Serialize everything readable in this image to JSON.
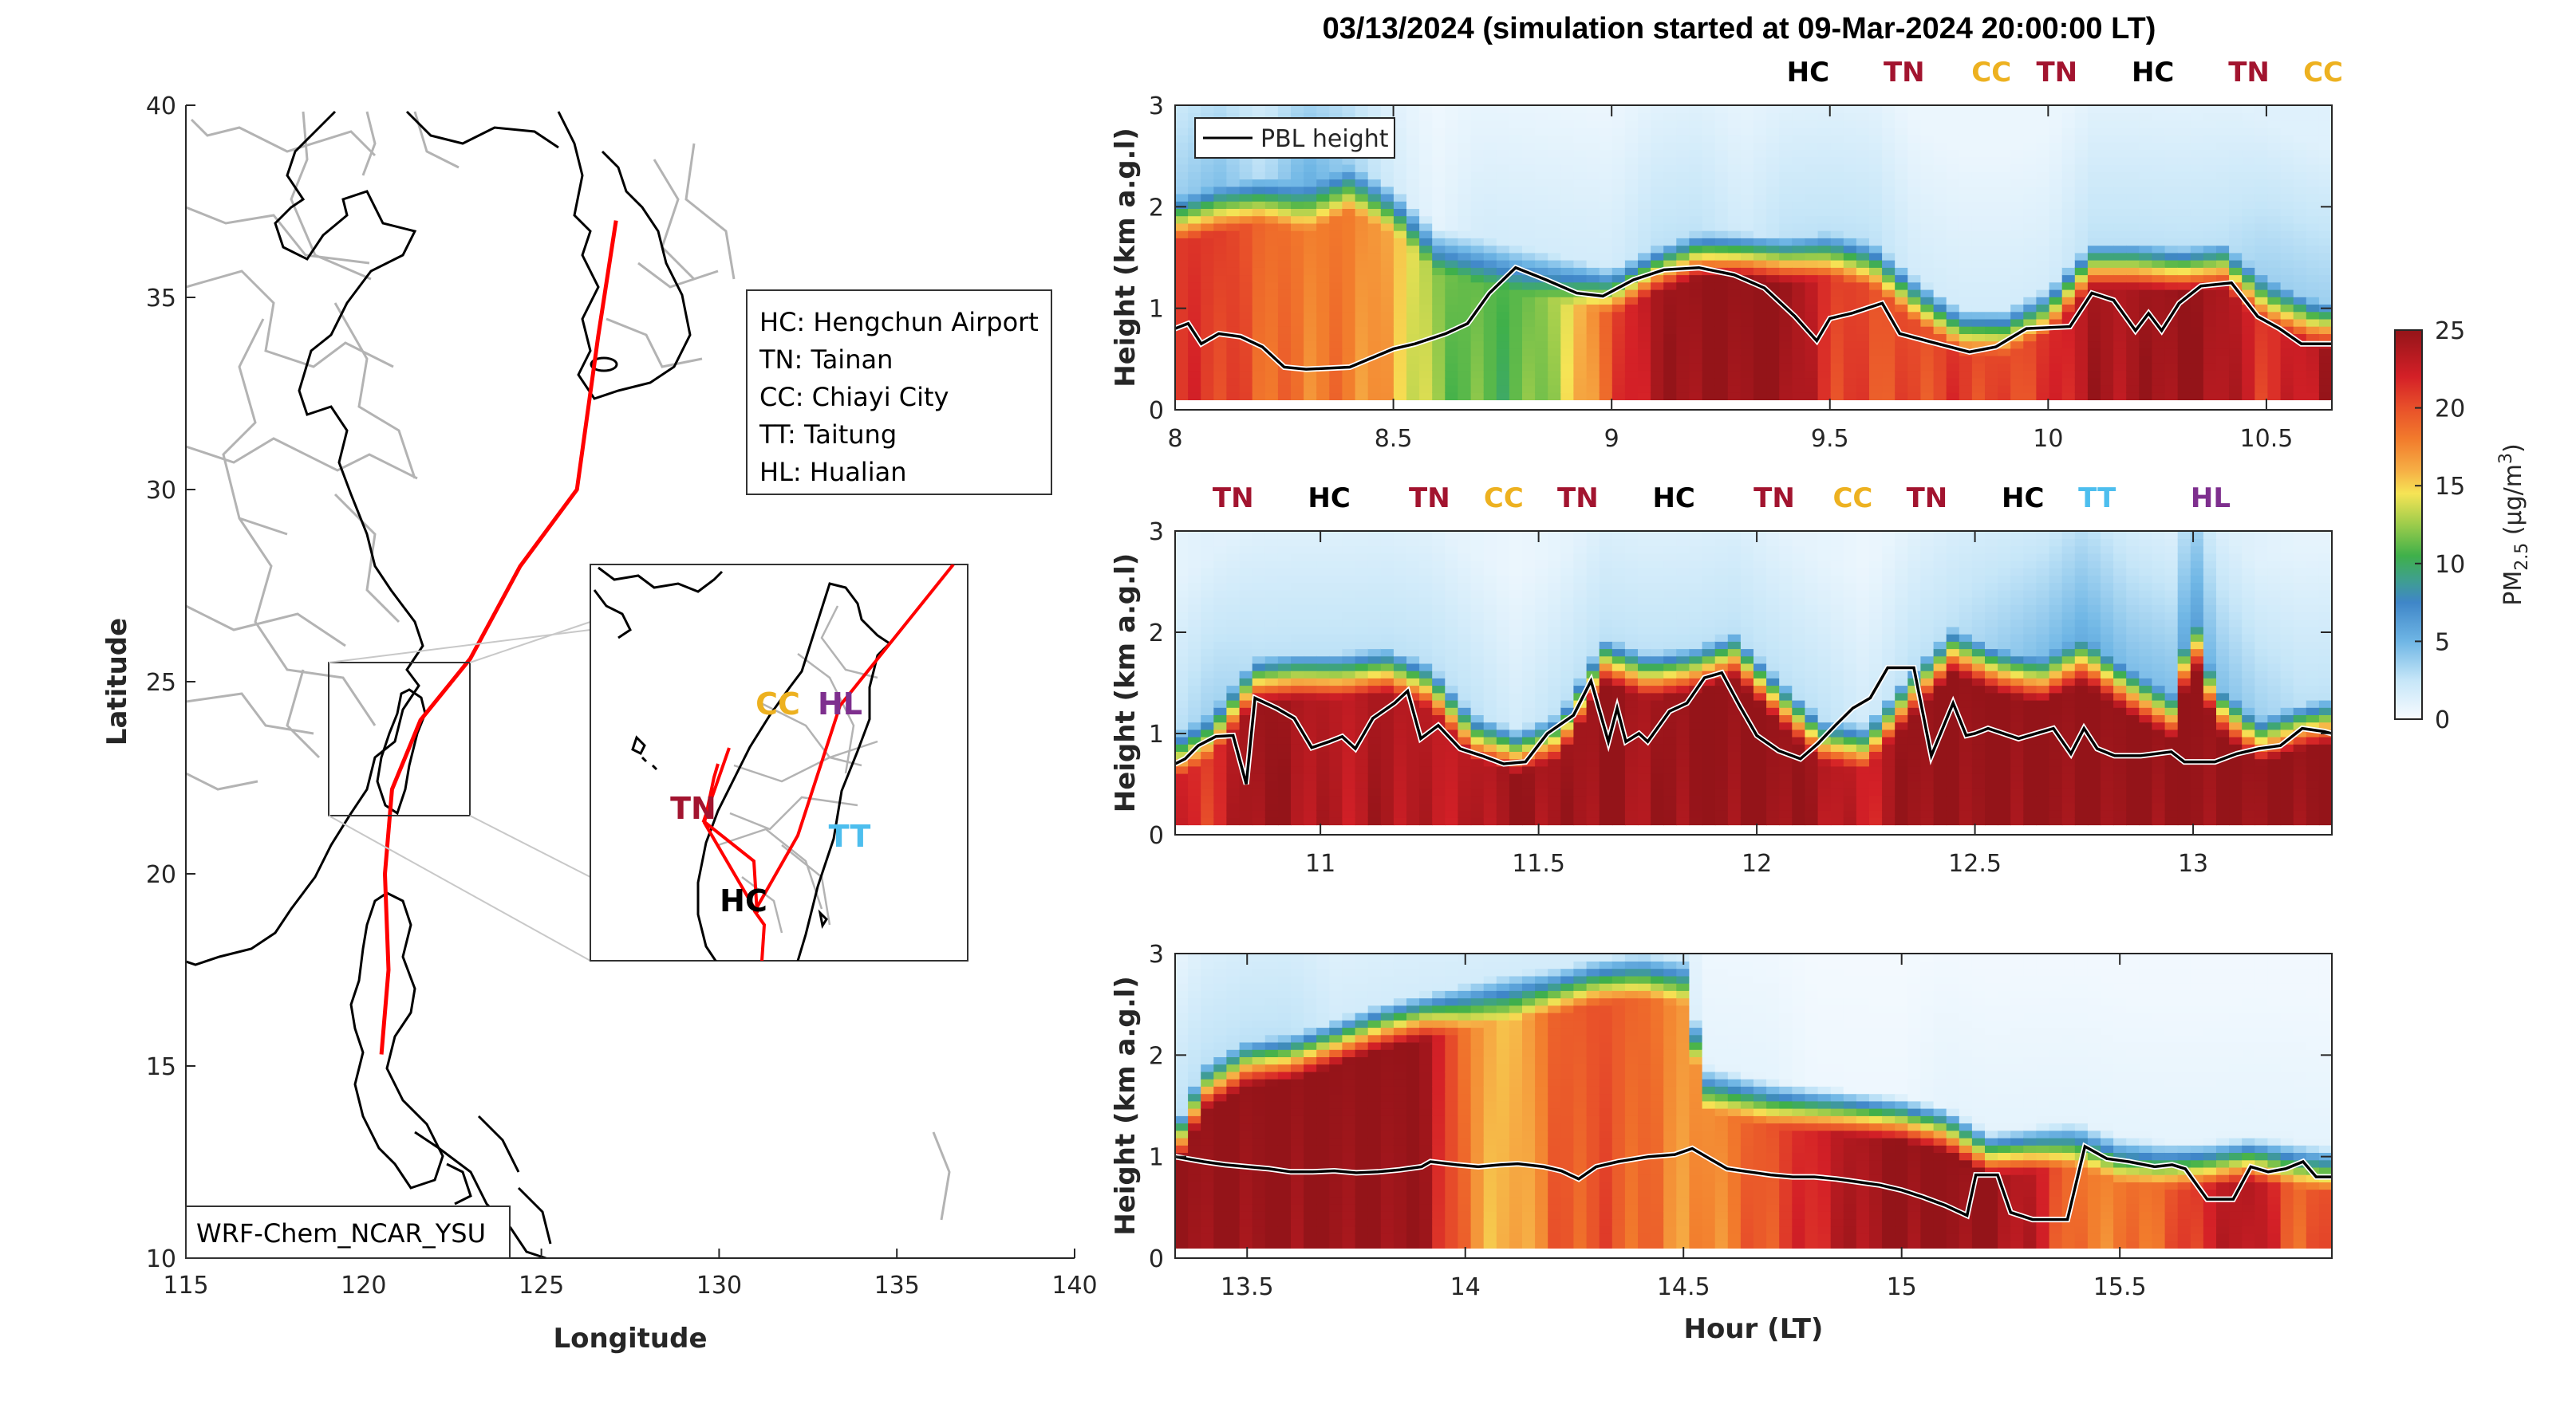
{
  "figure": {
    "title": "03/13/2024 (simulation started at 09-Mar-2024 20:00:00 LT)"
  },
  "colors": {
    "HC": "#000000",
    "TN": "#a2142f",
    "CC": "#edb120",
    "TT": "#4dbeee",
    "HL": "#7e2f8e",
    "trajectory": "#ff0000",
    "coast": "#000000",
    "border": "#b3b3b3"
  },
  "chart_data": [
    {
      "type": "map",
      "name": "trajectory-map",
      "xlabel": "Longitude",
      "ylabel": "Latitude",
      "xlim": [
        115,
        140
      ],
      "ylim": [
        10,
        40
      ],
      "xticks": [
        "115",
        "120",
        "125",
        "130",
        "135",
        "140"
      ],
      "yticks": [
        "10",
        "15",
        "20",
        "25",
        "30",
        "35",
        "40"
      ],
      "model_label": "WRF-Chem_NCAR_YSU",
      "legend": [
        "HC: Hengchun Airport",
        "TN: Tainan",
        "CC: Chiayi City",
        "TT: Taitung",
        "HL: Hualian"
      ],
      "trajectory_lonlat": [
        [
          127.1,
          37.0
        ],
        [
          126.6,
          34.0
        ],
        [
          126.0,
          30.0
        ],
        [
          124.4,
          28.0
        ],
        [
          123.0,
          25.6
        ],
        [
          121.6,
          24.0
        ],
        [
          120.8,
          22.2
        ],
        [
          120.6,
          20.0
        ],
        [
          120.7,
          17.5
        ],
        [
          120.5,
          15.3
        ]
      ],
      "inset": {
        "sites": [
          {
            "code": "CC",
            "lon": 120.45,
            "lat": 23.48
          },
          {
            "code": "HL",
            "lon": 121.6,
            "lat": 23.98
          },
          {
            "code": "TN",
            "lon": 120.2,
            "lat": 22.99
          },
          {
            "code": "TT",
            "lon": 121.15,
            "lat": 22.75
          },
          {
            "code": "HC",
            "lon": 120.75,
            "lat": 22.04
          }
        ]
      }
    },
    {
      "type": "heatmap",
      "name": "curtain-panel-1",
      "xlim": [
        8,
        10.65
      ],
      "ylim": [
        0,
        3
      ],
      "ylabel": "Height (km a.g.l)",
      "xticks": [
        "8",
        "8.5",
        "9",
        "9.5",
        "10",
        "10.5"
      ],
      "xtick_values": [
        8,
        8.5,
        9,
        9.5,
        10,
        10.5
      ],
      "yticks": [
        "0",
        "1",
        "2",
        "3"
      ],
      "legend": "PBL height",
      "site_labels": [
        {
          "code": "HC",
          "hour": 9.45
        },
        {
          "code": "TN",
          "hour": 9.67
        },
        {
          "code": "CC",
          "hour": 9.87
        },
        {
          "code": "TN",
          "hour": 10.02
        },
        {
          "code": "HC",
          "hour": 10.24
        },
        {
          "code": "TN",
          "hour": 10.46
        },
        {
          "code": "CC",
          "hour": 10.63
        }
      ],
      "pbl": {
        "hour": [
          8.0,
          8.03,
          8.06,
          8.1,
          8.15,
          8.2,
          8.25,
          8.3,
          8.4,
          8.5,
          8.55,
          8.62,
          8.67,
          8.72,
          8.78,
          8.85,
          8.92,
          8.98,
          9.05,
          9.12,
          9.2,
          9.28,
          9.35,
          9.42,
          9.47,
          9.5,
          9.55,
          9.62,
          9.66,
          9.73,
          9.82,
          9.88,
          9.95,
          10.05,
          10.1,
          10.15,
          10.2,
          10.23,
          10.26,
          10.3,
          10.35,
          10.42,
          10.48,
          10.53,
          10.58,
          10.65
        ],
        "km": [
          0.8,
          0.85,
          0.65,
          0.75,
          0.72,
          0.62,
          0.42,
          0.4,
          0.42,
          0.6,
          0.65,
          0.75,
          0.85,
          1.15,
          1.4,
          1.28,
          1.15,
          1.12,
          1.28,
          1.38,
          1.4,
          1.33,
          1.2,
          0.92,
          0.68,
          0.9,
          0.95,
          1.05,
          0.75,
          0.67,
          0.57,
          0.62,
          0.8,
          0.82,
          1.15,
          1.08,
          0.78,
          0.95,
          0.78,
          1.05,
          1.22,
          1.25,
          0.92,
          0.8,
          0.65,
          0.65
        ]
      },
      "pm25_layer": {
        "hour": [
          8.0,
          8.1,
          8.2,
          8.3,
          8.4,
          8.5,
          8.6,
          8.7,
          8.8,
          8.9,
          9.0,
          9.1,
          9.2,
          9.3,
          9.4,
          9.5,
          9.6,
          9.7,
          9.8,
          9.9,
          10.0,
          10.1,
          10.2,
          10.3,
          10.4,
          10.5,
          10.6,
          10.65
        ],
        "surface_ugm3": [
          21,
          21,
          19,
          18,
          18,
          16,
          12,
          11,
          11,
          14,
          20,
          24,
          25,
          25,
          25,
          21,
          20,
          20,
          21,
          20,
          21,
          24,
          24,
          25,
          24,
          21,
          23,
          25
        ],
        "layer_top_km": [
          1.9,
          2.0,
          2.1,
          2.0,
          2.2,
          2.0,
          1.6,
          1.5,
          1.4,
          1.3,
          1.2,
          1.4,
          1.55,
          1.55,
          1.5,
          1.55,
          1.45,
          1.1,
          0.8,
          0.8,
          1.0,
          1.45,
          1.45,
          1.4,
          1.45,
          1.1,
          0.9,
          0.85
        ],
        "aloft_ugm3": [
          4,
          5,
          3,
          6,
          4,
          2,
          1,
          2,
          2,
          2,
          2,
          3,
          3,
          2,
          3,
          3,
          3,
          2,
          2,
          2,
          2,
          3,
          3,
          3,
          3,
          4,
          4,
          4
        ]
      }
    },
    {
      "type": "heatmap",
      "name": "curtain-panel-2",
      "xlim": [
        10.667,
        13.318
      ],
      "ylim": [
        0,
        3
      ],
      "ylabel": "Height (km a.g.l)",
      "xticks": [
        "11",
        "11.5",
        "12",
        "12.5",
        "13"
      ],
      "xtick_values": [
        11,
        11.5,
        12,
        12.5,
        13
      ],
      "yticks": [
        "0",
        "1",
        "2",
        "3"
      ],
      "site_labels": [
        {
          "code": "TN",
          "hour": 10.8
        },
        {
          "code": "HC",
          "hour": 11.02
        },
        {
          "code": "TN",
          "hour": 11.25
        },
        {
          "code": "CC",
          "hour": 11.42
        },
        {
          "code": "TN",
          "hour": 11.59
        },
        {
          "code": "HC",
          "hour": 11.81
        },
        {
          "code": "TN",
          "hour": 12.04
        },
        {
          "code": "CC",
          "hour": 12.22
        },
        {
          "code": "TN",
          "hour": 12.39
        },
        {
          "code": "HC",
          "hour": 12.61
        },
        {
          "code": "TT",
          "hour": 12.78
        },
        {
          "code": "HL",
          "hour": 13.04
        }
      ],
      "pbl": {
        "hour": [
          10.667,
          10.69,
          10.72,
          10.76,
          10.8,
          10.83,
          10.85,
          10.9,
          10.94,
          10.98,
          11.02,
          11.05,
          11.08,
          11.12,
          11.17,
          11.2,
          11.23,
          11.27,
          11.32,
          11.37,
          11.42,
          11.47,
          11.52,
          11.58,
          11.62,
          11.66,
          11.68,
          11.7,
          11.73,
          11.75,
          11.8,
          11.84,
          11.88,
          11.92,
          11.96,
          12.0,
          12.05,
          12.1,
          12.14,
          12.18,
          12.22,
          12.26,
          12.3,
          12.36,
          12.4,
          12.45,
          12.48,
          12.5,
          12.53,
          12.6,
          12.68,
          12.72,
          12.75,
          12.78,
          12.82,
          12.88,
          12.95,
          12.98,
          13.05,
          13.1,
          13.15,
          13.2,
          13.25,
          13.3,
          13.318
        ],
        "km": [
          0.7,
          0.75,
          0.88,
          0.97,
          0.98,
          0.5,
          1.35,
          1.25,
          1.15,
          0.86,
          0.92,
          0.97,
          0.85,
          1.15,
          1.3,
          1.42,
          0.95,
          1.08,
          0.85,
          0.78,
          0.7,
          0.72,
          1.0,
          1.18,
          1.52,
          0.92,
          1.25,
          0.92,
          1.0,
          0.92,
          1.22,
          1.3,
          1.55,
          1.6,
          1.28,
          0.98,
          0.83,
          0.75,
          0.9,
          1.08,
          1.25,
          1.35,
          1.65,
          1.65,
          0.78,
          1.3,
          0.98,
          1.0,
          1.05,
          0.95,
          1.05,
          0.8,
          1.05,
          0.85,
          0.78,
          0.78,
          0.82,
          0.72,
          0.72,
          0.8,
          0.85,
          0.88,
          1.05,
          1.02,
          1.0
        ]
      },
      "pm25_layer": {
        "hour": [
          10.667,
          10.75,
          10.85,
          10.95,
          11.05,
          11.15,
          11.25,
          11.35,
          11.45,
          11.55,
          11.65,
          11.75,
          11.85,
          11.95,
          12.05,
          12.15,
          12.25,
          12.35,
          12.45,
          12.55,
          12.65,
          12.75,
          12.85,
          12.95,
          13.0,
          13.05,
          13.15,
          13.25,
          13.318
        ],
        "surface_ugm3": [
          22,
          21,
          25,
          24,
          23,
          24,
          23,
          23,
          25,
          24,
          25,
          24,
          25,
          25,
          25,
          24,
          22,
          25,
          25,
          25,
          25,
          25,
          25,
          25,
          25,
          25,
          25,
          25,
          25
        ],
        "layer_top_km": [
          0.8,
          1.0,
          1.55,
          1.6,
          1.6,
          1.65,
          1.5,
          1.0,
          0.85,
          1.0,
          1.75,
          1.6,
          1.65,
          1.8,
          1.35,
          0.95,
          0.9,
          1.4,
          1.85,
          1.65,
          1.55,
          1.75,
          1.45,
          1.2,
          2.0,
          1.3,
          0.95,
          1.1,
          1.15
        ],
        "aloft_ugm3": [
          3,
          4,
          3,
          3,
          3,
          3,
          3,
          3,
          2,
          3,
          3,
          3,
          3,
          3,
          3,
          3,
          2,
          3,
          3,
          4,
          5,
          6,
          5,
          5,
          7,
          5,
          4,
          3,
          3
        ]
      }
    },
    {
      "type": "heatmap",
      "name": "curtain-panel-3",
      "xlim": [
        13.335,
        15.986
      ],
      "ylim": [
        0,
        3
      ],
      "xlabel": "Hour (LT)",
      "ylabel": "Height (km a.g.l)",
      "xticks": [
        "13.5",
        "14",
        "14.5",
        "15",
        "15.5"
      ],
      "xtick_values": [
        13.5,
        14,
        14.5,
        15,
        15.5
      ],
      "yticks": [
        "0",
        "1",
        "2",
        "3"
      ],
      "site_labels": [],
      "pbl": {
        "hour": [
          13.335,
          13.36,
          13.4,
          13.45,
          13.5,
          13.55,
          13.6,
          13.65,
          13.7,
          13.75,
          13.8,
          13.85,
          13.9,
          13.92,
          13.98,
          14.03,
          14.08,
          14.12,
          14.18,
          14.22,
          14.26,
          14.3,
          14.35,
          14.42,
          14.48,
          14.52,
          14.56,
          14.6,
          14.65,
          14.7,
          14.75,
          14.8,
          14.85,
          14.9,
          14.95,
          15.0,
          15.05,
          15.1,
          15.15,
          15.17,
          15.22,
          15.25,
          15.3,
          15.35,
          15.38,
          15.42,
          15.47,
          15.52,
          15.58,
          15.62,
          15.65,
          15.7,
          15.76,
          15.8,
          15.84,
          15.88,
          15.92,
          15.95,
          15.986
        ],
        "km": [
          1.0,
          0.98,
          0.95,
          0.92,
          0.9,
          0.88,
          0.85,
          0.85,
          0.86,
          0.84,
          0.85,
          0.87,
          0.9,
          0.95,
          0.92,
          0.9,
          0.92,
          0.93,
          0.9,
          0.86,
          0.78,
          0.9,
          0.95,
          1.0,
          1.02,
          1.08,
          0.98,
          0.88,
          0.85,
          0.82,
          0.8,
          0.8,
          0.78,
          0.75,
          0.72,
          0.67,
          0.6,
          0.52,
          0.42,
          0.82,
          0.82,
          0.45,
          0.38,
          0.38,
          0.38,
          1.1,
          0.98,
          0.95,
          0.9,
          0.92,
          0.88,
          0.58,
          0.58,
          0.9,
          0.85,
          0.88,
          0.95,
          0.8,
          0.8
        ]
      },
      "pm25_layer": {
        "hour": [
          13.335,
          13.4,
          13.5,
          13.6,
          13.7,
          13.8,
          13.9,
          14.0,
          14.1,
          14.2,
          14.3,
          14.4,
          14.5,
          14.55,
          14.6,
          14.7,
          14.8,
          14.9,
          15.0,
          15.1,
          15.2,
          15.3,
          15.4,
          15.5,
          15.6,
          15.7,
          15.8,
          15.9,
          15.986
        ],
        "surface_ugm3": [
          25,
          25,
          25,
          25,
          25,
          25,
          25,
          18,
          15,
          19,
          20,
          19,
          17,
          17,
          18,
          20,
          22,
          24,
          25,
          25,
          25,
          23,
          18,
          18,
          19,
          22,
          24,
          19,
          20
        ],
        "layer_top_km": [
          1.1,
          1.7,
          1.95,
          2.0,
          2.15,
          2.3,
          2.4,
          2.5,
          2.6,
          2.65,
          2.75,
          2.8,
          2.75,
          1.7,
          1.65,
          1.55,
          1.5,
          1.45,
          1.4,
          1.3,
          1.05,
          1.1,
          1.15,
          1.0,
          0.95,
          0.95,
          1.0,
          0.95,
          0.9
        ],
        "aloft_ugm3": [
          3,
          3,
          3,
          3,
          2,
          2,
          2,
          2,
          2,
          2,
          2,
          2,
          2,
          1,
          1,
          1,
          0.5,
          0.5,
          0.5,
          1,
          1,
          1,
          1,
          1,
          1,
          1,
          1,
          1,
          1
        ]
      }
    },
    {
      "type": "colorbar",
      "name": "pm25-colorbar",
      "label_main": "PM",
      "label_sub": "2.5",
      "label_unit": " (μg/m",
      "label_sup": "3",
      "label_close": ")",
      "range": [
        0,
        25
      ],
      "ticks": [
        "0",
        "5",
        "10",
        "15",
        "20",
        "25"
      ],
      "tick_values": [
        0,
        5,
        10,
        15,
        20,
        25
      ],
      "stops": [
        {
          "v": 0,
          "c": "#f7fbff"
        },
        {
          "v": 2.5,
          "c": "#c6e6f8"
        },
        {
          "v": 5,
          "c": "#6fb6e5"
        },
        {
          "v": 7.5,
          "c": "#3f86c8"
        },
        {
          "v": 9,
          "c": "#3fa08c"
        },
        {
          "v": 10.5,
          "c": "#3fb04a"
        },
        {
          "v": 12.5,
          "c": "#9ccc4b"
        },
        {
          "v": 14.5,
          "c": "#f6e455"
        },
        {
          "v": 16,
          "c": "#f6ae45"
        },
        {
          "v": 18,
          "c": "#f27b2c"
        },
        {
          "v": 20,
          "c": "#e8502a"
        },
        {
          "v": 22,
          "c": "#d42027"
        },
        {
          "v": 25,
          "c": "#941419"
        }
      ]
    }
  ]
}
